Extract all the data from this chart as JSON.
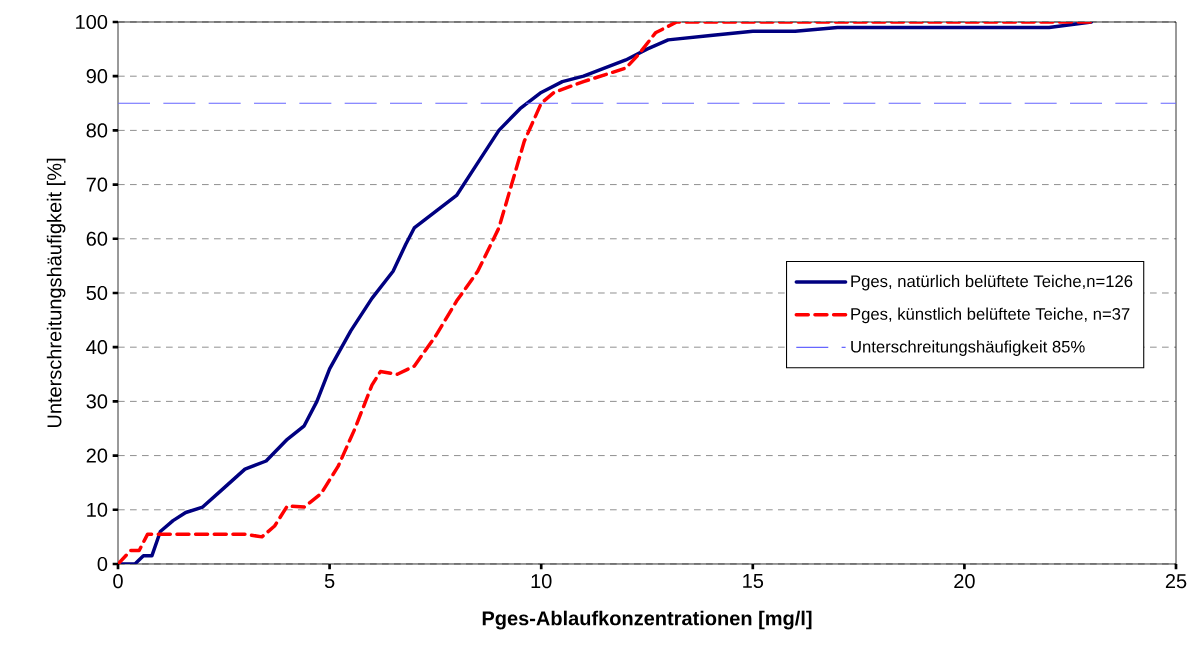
{
  "chart_data": {
    "type": "line",
    "xlabel": "**Pges-Ablaufkonzentrationen [mg/l]**",
    "ylabel": "Unterschreitungshäufigkeit [%]",
    "xlim": [
      0,
      25
    ],
    "ylim": [
      0,
      100
    ],
    "xticks": [
      0,
      5,
      10,
      15,
      20,
      25
    ],
    "yticks": [
      0,
      10,
      20,
      30,
      40,
      50,
      60,
      70,
      80,
      90,
      100
    ],
    "grid": "y",
    "legend": "right",
    "marker": "none",
    "series": [
      {
        "name": "Pges, natürlich belüftete Teiche,n=126",
        "color": "#000080",
        "line_style": "solid",
        "x": [
          0,
          0.4,
          0.6,
          0.8,
          1.0,
          1.3,
          1.6,
          2.0,
          2.5,
          3.0,
          3.5,
          4.0,
          4.4,
          4.7,
          5.0,
          5.5,
          6.0,
          6.5,
          6.8,
          7.0,
          7.5,
          8.0,
          8.5,
          9.0,
          9.5,
          10.0,
          10.5,
          11.0,
          12.0,
          12.5,
          13.0,
          14,
          15,
          16,
          17,
          20,
          22,
          23
        ],
        "values": [
          0,
          0,
          1.5,
          1.5,
          6,
          8,
          9.5,
          10.5,
          14,
          17.5,
          19,
          23,
          25.5,
          30,
          36,
          43,
          49,
          54,
          59,
          62,
          65,
          68,
          74,
          80,
          84,
          87,
          89,
          90,
          93,
          95,
          96.7,
          97.5,
          98.3,
          98.3,
          99,
          99,
          99,
          100
        ]
      },
      {
        "name": "Pges, künstlich belüftete Teiche, n=37",
        "color": "#ff0000",
        "line_style": "dashed",
        "x": [
          0,
          0.3,
          0.5,
          0.7,
          1,
          2,
          3,
          3.4,
          3.7,
          4,
          4.4,
          4.8,
          5.2,
          5.6,
          6.0,
          6.2,
          6.6,
          7.0,
          7.5,
          8.0,
          8.5,
          9.0,
          9.3,
          9.6,
          10.0,
          10.3,
          11,
          12,
          12.3,
          12.7,
          13.2,
          23
        ],
        "values": [
          0,
          2.5,
          2.5,
          5.5,
          5.5,
          5.5,
          5.5,
          5,
          7,
          10.7,
          10.5,
          13,
          18,
          25,
          33,
          35.5,
          35,
          36.5,
          42,
          48.5,
          54,
          62,
          70,
          78,
          85,
          87,
          89,
          91.5,
          94,
          98,
          100,
          100
        ]
      }
    ],
    "ref_lines": [
      {
        "axis": "y",
        "value": 85,
        "label": "Unterschreitungshäufigkeit 85%",
        "color": "#6666ff",
        "line_style": "dashed"
      }
    ]
  }
}
